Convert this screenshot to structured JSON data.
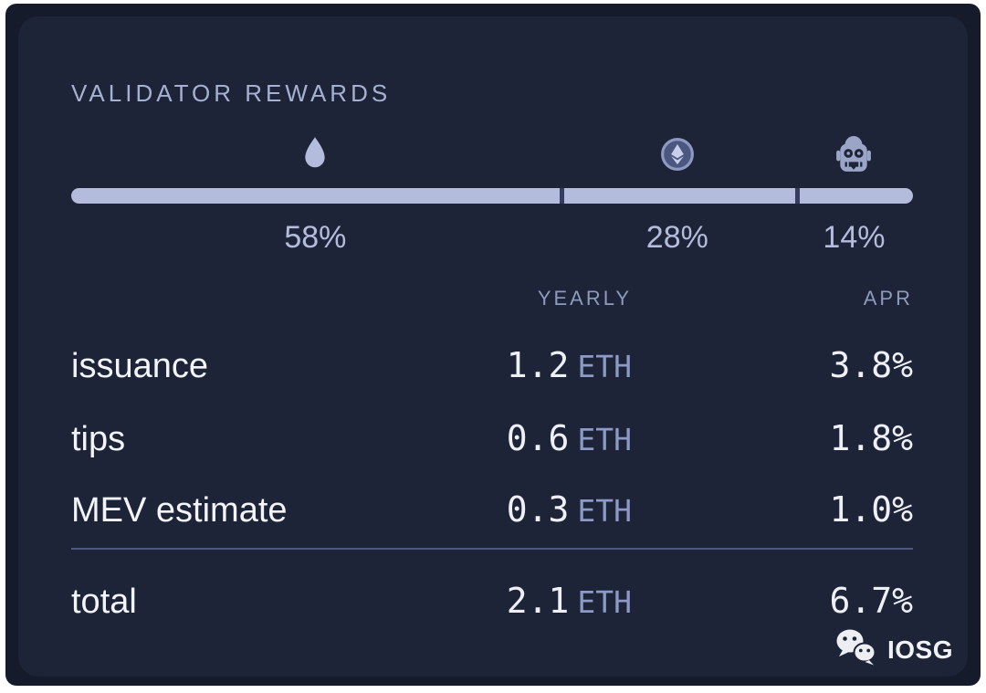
{
  "title": "VALIDATOR REWARDS",
  "colors": {
    "frame_background": "#161b2b",
    "card_background": "#1d2438",
    "bar_accent": "#b4bcde",
    "text_primary": "#f3f4f8",
    "text_muted_lavender": "#8d9ac6",
    "divider": "#4e597b"
  },
  "distribution": {
    "segments": [
      {
        "name": "issuance",
        "icon": "water-drop-icon",
        "percent": 58,
        "label": "58%"
      },
      {
        "name": "tips",
        "icon": "eth-coin-icon",
        "percent": 28,
        "label": "28%"
      },
      {
        "name": "mev",
        "icon": "robot-icon",
        "percent": 14,
        "label": "14%"
      }
    ]
  },
  "table": {
    "headers": {
      "yearly": "YEARLY",
      "apr": "APR"
    },
    "rows": [
      {
        "label": "issuance",
        "yearly": "1.2",
        "unit": "ETH",
        "apr": "3.8%"
      },
      {
        "label": "tips",
        "yearly": "0.6",
        "unit": "ETH",
        "apr": "1.8%"
      },
      {
        "label": "MEV estimate",
        "yearly": "0.3",
        "unit": "ETH",
        "apr": "1.0%"
      }
    ],
    "total": {
      "label": "total",
      "yearly": "2.1",
      "unit": "ETH",
      "apr": "6.7%"
    }
  },
  "watermark": {
    "label": "IOSG",
    "icon": "wechat-icon"
  },
  "chart_data": {
    "type": "bar",
    "title": "VALIDATOR REWARDS",
    "categories": [
      "issuance",
      "tips",
      "MEV estimate"
    ],
    "series": [
      {
        "name": "share of rewards (%)",
        "values": [
          58,
          28,
          14
        ]
      },
      {
        "name": "yearly (ETH)",
        "values": [
          1.2,
          0.6,
          0.3
        ]
      },
      {
        "name": "APR (%)",
        "values": [
          3.8,
          1.8,
          1.0
        ]
      }
    ],
    "totals": {
      "yearly_eth": 2.1,
      "apr_percent": 6.7
    },
    "xlabel": "",
    "ylabel": "",
    "legend_position": "none",
    "grid": false,
    "layout": "single horizontal stacked percentage bar with per-segment icons and labels, plus summary table"
  }
}
